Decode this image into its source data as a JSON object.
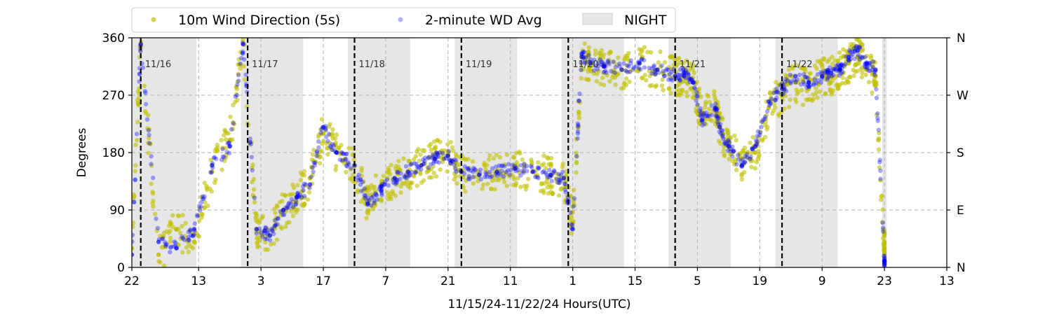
{
  "chart_data": {
    "type": "scatter",
    "xlabel": "11/15/24-11/22/24  Hours(UTC)",
    "ylabel": "Degrees",
    "ylim": [
      0,
      360
    ],
    "xlim": [
      "2024-11-15T22:00",
      "2024-11-23T13:00"
    ],
    "yticks": [
      0,
      90,
      180,
      270,
      360
    ],
    "right_axis_labels": [
      "N",
      "E",
      "S",
      "W",
      "N"
    ],
    "x_tick_labels": [
      "22",
      "13",
      "3",
      "17",
      "7",
      "21",
      "11",
      "1",
      "15",
      "5",
      "19",
      "9",
      "23",
      "13"
    ],
    "x_tick_times": [
      "2024-11-15T22:00",
      "2024-11-16T13:00",
      "2024-11-17T03:00",
      "2024-11-17T17:00",
      "2024-11-18T07:00",
      "2024-11-18T21:00",
      "2024-11-19T11:00",
      "2024-11-20T01:00",
      "2024-11-20T15:00",
      "2024-11-21T05:00",
      "2024-11-21T19:00",
      "2024-11-22T09:00",
      "2024-11-22T23:00",
      "2024-11-23T13:00"
    ],
    "grid": true,
    "legend_placement": "top",
    "day_markers": [
      {
        "label": "11/16",
        "time": "2024-11-16T00:00"
      },
      {
        "label": "11/17",
        "time": "2024-11-17T00:00"
      },
      {
        "label": "11/18",
        "time": "2024-11-18T00:00"
      },
      {
        "label": "11/19",
        "time": "2024-11-19T00:00"
      },
      {
        "label": "11/20",
        "time": "2024-11-20T00:00"
      },
      {
        "label": "11/21",
        "time": "2024-11-21T00:00"
      },
      {
        "label": "11/22",
        "time": "2024-11-22T00:00"
      }
    ],
    "night_periods": [
      [
        "2024-11-15T22:00",
        "2024-11-16T12:30"
      ],
      [
        "2024-11-16T22:30",
        "2024-11-17T12:30"
      ],
      [
        "2024-11-17T22:30",
        "2024-11-18T12:30"
      ],
      [
        "2024-11-18T22:30",
        "2024-11-19T12:30"
      ],
      [
        "2024-11-19T22:30",
        "2024-11-20T12:30"
      ],
      [
        "2024-11-20T22:30",
        "2024-11-21T12:30"
      ],
      [
        "2024-11-21T22:30",
        "2024-11-22T12:30"
      ],
      [
        "2024-11-22T22:30",
        "2024-11-22T23:30"
      ]
    ],
    "series": [
      {
        "name": "10m Wind Direction (5s)",
        "color": "#bfbf00",
        "spread": 30,
        "t": [
          "2024-11-15T22:00",
          "2024-11-16T00:00",
          "2024-11-16T04:00",
          "2024-11-16T08:00",
          "2024-11-16T12:00",
          "2024-11-16T16:00",
          "2024-11-16T20:00",
          "2024-11-16T23:00",
          "2024-11-17T02:00",
          "2024-11-17T05:00",
          "2024-11-17T08:00",
          "2024-11-17T11:00",
          "2024-11-17T14:00",
          "2024-11-17T17:00",
          "2024-11-17T20:00",
          "2024-11-18T00:00",
          "2024-11-18T03:00",
          "2024-11-18T06:00",
          "2024-11-18T09:00",
          "2024-11-18T12:00",
          "2024-11-18T15:00",
          "2024-11-18T18:00",
          "2024-11-18T21:00",
          "2024-11-19T00:00",
          "2024-11-19T04:00",
          "2024-11-19T08:00",
          "2024-11-19T12:00",
          "2024-11-19T16:00",
          "2024-11-19T20:00",
          "2024-11-19T23:00",
          "2024-11-20T01:00",
          "2024-11-20T03:00",
          "2024-11-20T05:00",
          "2024-11-20T08:00",
          "2024-11-20T12:00",
          "2024-11-20T16:00",
          "2024-11-20T20:00",
          "2024-11-21T00:00",
          "2024-11-21T02:00",
          "2024-11-21T04:00",
          "2024-11-21T06:00",
          "2024-11-21T09:00",
          "2024-11-21T10:00",
          "2024-11-21T12:00",
          "2024-11-21T15:00",
          "2024-11-21T18:00",
          "2024-11-21T21:00",
          "2024-11-22T00:00",
          "2024-11-22T03:00",
          "2024-11-22T06:00",
          "2024-11-22T09:00",
          "2024-11-22T11:00",
          "2024-11-22T13:00",
          "2024-11-22T15:00",
          "2024-11-22T17:00",
          "2024-11-22T19:00",
          "2024-11-22T21:00",
          "2024-11-22T23:00"
        ],
        "values": [
          30,
          350,
          20,
          60,
          40,
          150,
          200,
          350,
          60,
          50,
          90,
          110,
          140,
          210,
          180,
          160,
          100,
          130,
          140,
          150,
          160,
          170,
          175,
          150,
          145,
          150,
          155,
          150,
          145,
          140,
          70,
          330,
          320,
          315,
          310,
          320,
          310,
          300,
          300,
          290,
          240,
          250,
          220,
          190,
          160,
          180,
          250,
          270,
          290,
          280,
          300,
          300,
          310,
          320,
          330,
          310,
          300,
          30
        ]
      },
      {
        "name": "2-minute WD Avg",
        "color": "#0000ff",
        "spread": 10,
        "t": [
          "2024-11-15T22:00",
          "2024-11-16T00:00",
          "2024-11-16T04:00",
          "2024-11-16T08:00",
          "2024-11-16T12:00",
          "2024-11-16T16:00",
          "2024-11-16T20:00",
          "2024-11-16T23:00",
          "2024-11-17T02:00",
          "2024-11-17T05:00",
          "2024-11-17T08:00",
          "2024-11-17T11:00",
          "2024-11-17T14:00",
          "2024-11-17T17:00",
          "2024-11-17T20:00",
          "2024-11-18T00:00",
          "2024-11-18T03:00",
          "2024-11-18T06:00",
          "2024-11-18T09:00",
          "2024-11-18T12:00",
          "2024-11-18T15:00",
          "2024-11-18T18:00",
          "2024-11-18T21:00",
          "2024-11-19T00:00",
          "2024-11-19T04:00",
          "2024-11-19T08:00",
          "2024-11-19T12:00",
          "2024-11-19T16:00",
          "2024-11-19T20:00",
          "2024-11-19T23:00",
          "2024-11-20T01:00",
          "2024-11-20T03:00",
          "2024-11-20T05:00",
          "2024-11-20T08:00",
          "2024-11-20T12:00",
          "2024-11-20T16:00",
          "2024-11-20T20:00",
          "2024-11-21T00:00",
          "2024-11-21T02:00",
          "2024-11-21T04:00",
          "2024-11-21T06:00",
          "2024-11-21T09:00",
          "2024-11-21T10:00",
          "2024-11-21T12:00",
          "2024-11-21T15:00",
          "2024-11-21T18:00",
          "2024-11-21T21:00",
          "2024-11-22T00:00",
          "2024-11-22T03:00",
          "2024-11-22T06:00",
          "2024-11-22T09:00",
          "2024-11-22T11:00",
          "2024-11-22T13:00",
          "2024-11-22T15:00",
          "2024-11-22T17:00",
          "2024-11-22T19:00",
          "2024-11-22T21:00",
          "2024-11-22T23:00"
        ],
        "values": [
          20,
          350,
          40,
          30,
          60,
          160,
          190,
          350,
          60,
          50,
          90,
          110,
          130,
          220,
          180,
          160,
          100,
          120,
          140,
          150,
          160,
          170,
          175,
          150,
          145,
          150,
          155,
          150,
          145,
          140,
          60,
          335,
          320,
          315,
          310,
          320,
          310,
          300,
          305,
          290,
          230,
          250,
          220,
          190,
          160,
          190,
          260,
          280,
          300,
          290,
          300,
          305,
          310,
          330,
          340,
          320,
          310,
          10
        ]
      }
    ]
  },
  "legend": {
    "items": [
      {
        "label": "10m Wind Direction (5s)",
        "color": "#bfbf00",
        "kind": "point"
      },
      {
        "label": "2-minute WD Avg",
        "color": "#0000ff",
        "kind": "point"
      },
      {
        "label": "NIGHT",
        "color": "#e6e6e6",
        "kind": "patch"
      }
    ]
  }
}
